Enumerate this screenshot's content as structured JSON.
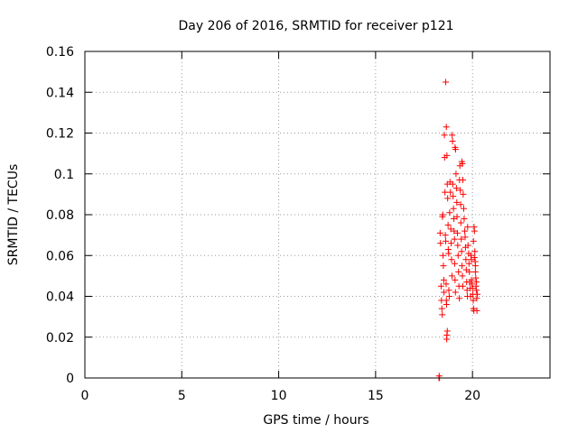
{
  "chart_data": {
    "type": "scatter",
    "title": "Day 206 of 2016, SRMTID for receiver p121",
    "xlabel": "GPS time / hours",
    "ylabel": "SRMTID / TECUs",
    "xlim": [
      0,
      24
    ],
    "ylim": [
      0,
      0.16
    ],
    "xticks": [
      "0",
      "5",
      "10",
      "15",
      "20"
    ],
    "yticks": [
      "0",
      "0.02",
      "0.04",
      "0.06",
      "0.08",
      "0.1",
      "0.12",
      "0.14",
      "0.16"
    ],
    "xtick_values": [
      0,
      5,
      10,
      15,
      20
    ],
    "ytick_values": [
      0,
      0.02,
      0.04,
      0.06,
      0.08,
      0.1,
      0.12,
      0.14,
      0.16
    ],
    "grid": true,
    "marker": "+",
    "color": "#ff0000",
    "series": [
      {
        "points": [
          [
            18.27,
            0.0
          ],
          [
            18.28,
            0.001
          ],
          [
            18.3,
            0.0
          ],
          [
            18.33,
            0.071
          ],
          [
            18.35,
            0.066
          ],
          [
            18.38,
            0.045
          ],
          [
            18.4,
            0.038
          ],
          [
            18.42,
            0.034
          ],
          [
            18.44,
            0.031
          ],
          [
            18.45,
            0.079
          ],
          [
            18.47,
            0.08
          ],
          [
            18.48,
            0.06
          ],
          [
            18.5,
            0.055
          ],
          [
            18.52,
            0.048
          ],
          [
            18.53,
            0.042
          ],
          [
            18.55,
            0.119
          ],
          [
            18.56,
            0.108
          ],
          [
            18.58,
            0.091
          ],
          [
            18.6,
            0.07
          ],
          [
            18.62,
            0.067
          ],
          [
            18.64,
            0.046
          ],
          [
            18.65,
            0.038
          ],
          [
            18.66,
            0.036
          ],
          [
            18.67,
            0.019
          ],
          [
            18.68,
            0.021
          ],
          [
            18.7,
            0.023
          ],
          [
            18.62,
            0.145
          ],
          [
            18.65,
            0.123
          ],
          [
            18.68,
            0.109
          ],
          [
            18.7,
            0.095
          ],
          [
            18.72,
            0.088
          ],
          [
            18.74,
            0.075
          ],
          [
            18.75,
            0.063
          ],
          [
            18.77,
            0.061
          ],
          [
            18.78,
            0.043
          ],
          [
            18.8,
            0.04
          ],
          [
            18.82,
            0.081
          ],
          [
            18.84,
            0.096
          ],
          [
            18.86,
            0.091
          ],
          [
            18.88,
            0.073
          ],
          [
            18.9,
            0.066
          ],
          [
            18.92,
            0.058
          ],
          [
            18.94,
            0.05
          ],
          [
            18.95,
            0.119
          ],
          [
            18.97,
            0.116
          ],
          [
            18.98,
            0.095
          ],
          [
            19.0,
            0.089
          ],
          [
            19.02,
            0.083
          ],
          [
            19.04,
            0.078
          ],
          [
            19.05,
            0.072
          ],
          [
            19.07,
            0.068
          ],
          [
            19.08,
            0.056
          ],
          [
            19.1,
            0.048
          ],
          [
            19.12,
            0.042
          ],
          [
            19.1,
            0.113
          ],
          [
            19.13,
            0.112
          ],
          [
            19.15,
            0.1
          ],
          [
            19.17,
            0.093
          ],
          [
            19.19,
            0.086
          ],
          [
            19.2,
            0.079
          ],
          [
            19.22,
            0.071
          ],
          [
            19.24,
            0.065
          ],
          [
            19.26,
            0.06
          ],
          [
            19.28,
            0.052
          ],
          [
            19.3,
            0.045
          ],
          [
            19.32,
            0.039
          ],
          [
            19.33,
            0.097
          ],
          [
            19.35,
            0.104
          ],
          [
            19.37,
            0.092
          ],
          [
            19.39,
            0.085
          ],
          [
            19.4,
            0.076
          ],
          [
            19.42,
            0.068
          ],
          [
            19.44,
            0.062
          ],
          [
            19.46,
            0.055
          ],
          [
            19.48,
            0.05
          ],
          [
            19.5,
            0.045
          ],
          [
            19.45,
            0.106
          ],
          [
            19.48,
            0.105
          ],
          [
            19.5,
            0.097
          ],
          [
            19.52,
            0.09
          ],
          [
            19.55,
            0.083
          ],
          [
            19.57,
            0.078
          ],
          [
            19.6,
            0.072
          ],
          [
            19.62,
            0.069
          ],
          [
            19.64,
            0.064
          ],
          [
            19.66,
            0.058
          ],
          [
            19.68,
            0.053
          ],
          [
            19.7,
            0.047
          ],
          [
            19.72,
            0.043
          ],
          [
            19.74,
            0.04
          ],
          [
            19.75,
            0.074
          ],
          [
            19.77,
            0.065
          ],
          [
            19.8,
            0.061
          ],
          [
            19.82,
            0.056
          ],
          [
            19.84,
            0.052
          ],
          [
            19.86,
            0.047
          ],
          [
            19.88,
            0.044
          ],
          [
            19.9,
            0.04
          ],
          [
            19.92,
            0.06
          ],
          [
            19.94,
            0.058
          ],
          [
            19.95,
            0.048
          ],
          [
            19.97,
            0.046
          ],
          [
            20.0,
            0.044
          ],
          [
            20.02,
            0.041
          ],
          [
            20.04,
            0.038
          ],
          [
            20.05,
            0.034
          ],
          [
            20.07,
            0.033
          ],
          [
            20.08,
            0.074
          ],
          [
            20.1,
            0.072
          ],
          [
            20.12,
            0.062
          ],
          [
            20.14,
            0.057
          ],
          [
            20.15,
            0.052
          ],
          [
            20.17,
            0.049
          ],
          [
            20.18,
            0.045
          ],
          [
            20.2,
            0.043
          ],
          [
            20.22,
            0.039
          ],
          [
            20.23,
            0.033
          ],
          [
            20.05,
            0.067
          ],
          [
            20.1,
            0.059
          ],
          [
            20.15,
            0.055
          ],
          [
            20.2,
            0.047
          ],
          [
            20.25,
            0.041
          ]
        ]
      }
    ]
  }
}
